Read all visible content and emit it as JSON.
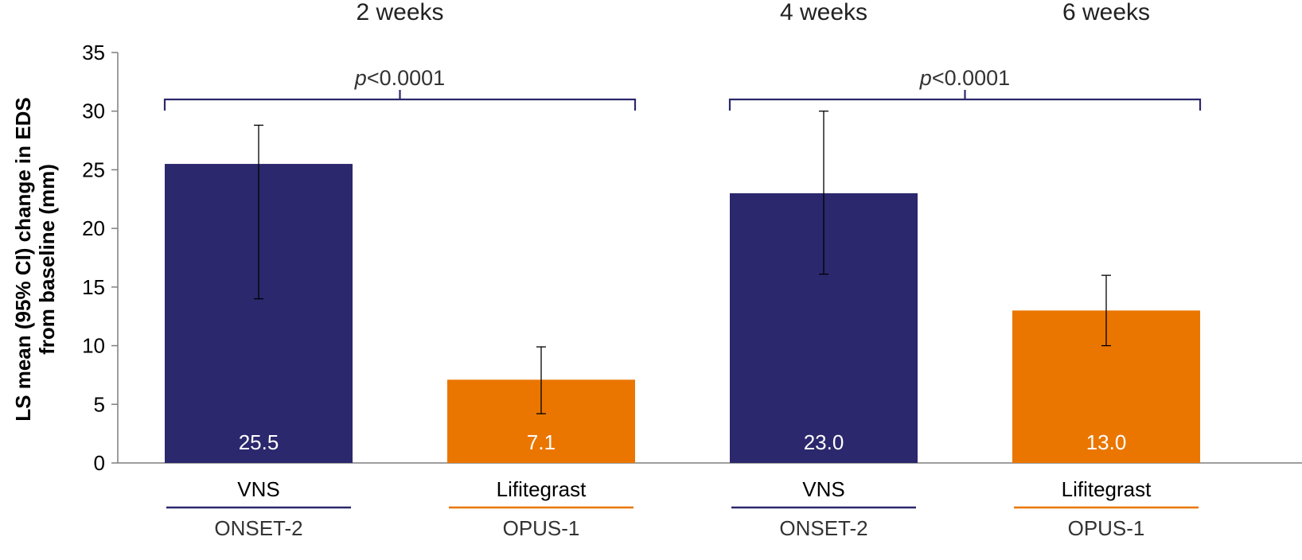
{
  "chart_data": {
    "type": "bar",
    "ylabel_lines": [
      "LS mean (95% CI) change in EDS",
      "from baseline (mm)"
    ],
    "ylim": [
      0,
      35
    ],
    "yticks": [
      0,
      5,
      10,
      15,
      20,
      25,
      30,
      35
    ],
    "grid": false,
    "legend": "none",
    "time_headers": [
      {
        "label": "2 weeks",
        "over_bars": [
          0,
          1
        ]
      },
      {
        "label": "4 weeks",
        "over_bars": [
          2
        ]
      },
      {
        "label": "6 weeks",
        "over_bars": [
          3
        ]
      }
    ],
    "bars": [
      {
        "category": "VNS",
        "study": "ONSET-2",
        "value": 25.5,
        "value_label": "25.5",
        "ci": [
          14.0,
          28.8
        ],
        "color": "#2B286D"
      },
      {
        "category": "Lifitegrast",
        "study": "OPUS-1",
        "value": 7.1,
        "value_label": "7.1",
        "ci": [
          4.2,
          9.9
        ],
        "color": "#EA7600"
      },
      {
        "category": "VNS",
        "study": "ONSET-2",
        "value": 23.0,
        "value_label": "23.0",
        "ci": [
          16.1,
          30.0
        ],
        "color": "#2B286D"
      },
      {
        "category": "Lifitegrast",
        "study": "OPUS-1",
        "value": 13.0,
        "value_label": "13.0",
        "ci": [
          10.0,
          16.0
        ],
        "color": "#EA7600"
      }
    ],
    "comparisons": [
      {
        "from": 0,
        "to": 1,
        "label_italic": "p",
        "label_rest": "<0.0001",
        "y": 31
      },
      {
        "from": 2,
        "to": 3,
        "label_italic": "p",
        "label_rest": "<0.0001",
        "y": 31
      }
    ]
  },
  "colors": {
    "vns": "#2B286D",
    "lifitegrast": "#EA7600",
    "bracket": "#2B286D",
    "axis": "#7f7f7f"
  }
}
